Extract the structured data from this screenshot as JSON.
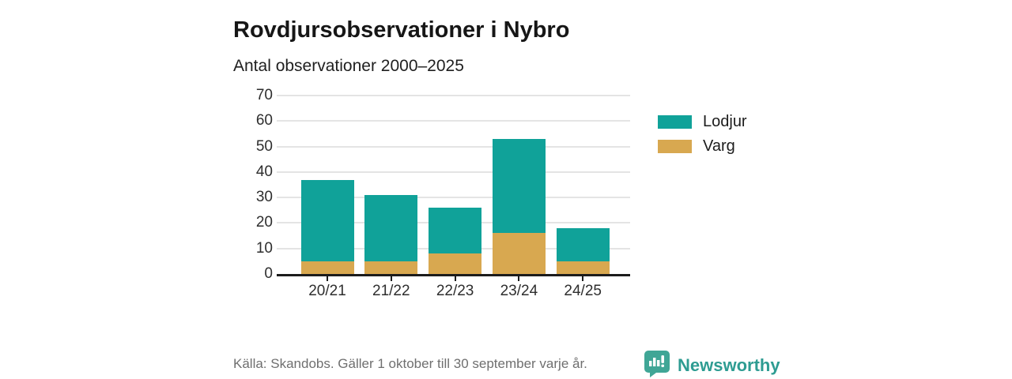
{
  "title": "Rovdjursobservationer i Nybro",
  "subtitle": "Antal observationer 2000–2025",
  "footer": {
    "source": "Källa: Skandobs. Gäller 1 oktober till 30 september varje år.",
    "brand": "Newsworthy"
  },
  "colors": {
    "lodjur_teal": "#10a299",
    "varg_gold": "#d8a850",
    "brand_teal": "#2e9c92",
    "logo_teal": "#40a696",
    "gridline": "#e4e4e4",
    "axis": "#1c1c1c",
    "footer_text": "#6f6f6f"
  },
  "chart_data": {
    "type": "bar",
    "stacked": true,
    "categories": [
      "20/21",
      "21/22",
      "22/23",
      "23/24",
      "24/25"
    ],
    "series": [
      {
        "name": "Varg",
        "color": "#d8a850",
        "values": [
          5,
          5,
          8,
          16,
          5
        ]
      },
      {
        "name": "Lodjur",
        "color": "#10a299",
        "values": [
          32,
          26,
          18,
          37,
          13
        ]
      }
    ],
    "totals": [
      37,
      31,
      26,
      53,
      18
    ],
    "title": "Rovdjursobservationer i Nybro",
    "subtitle": "Antal observationer 2000–2025",
    "xlabel": "",
    "ylabel": "",
    "ylim": [
      0,
      70
    ],
    "yticks": [
      0,
      10,
      20,
      30,
      40,
      50,
      60,
      70
    ],
    "grid": true,
    "legend": [
      "Lodjur",
      "Varg"
    ],
    "legend_position": "right"
  }
}
